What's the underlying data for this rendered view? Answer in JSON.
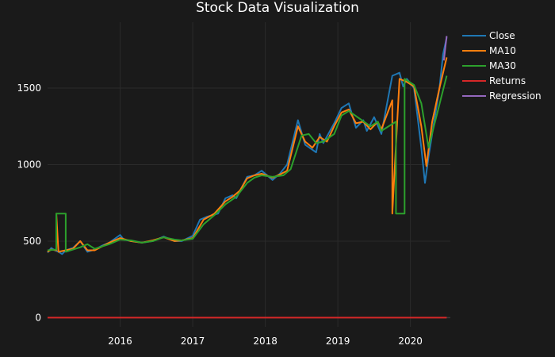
{
  "chart_data": {
    "type": "line",
    "title": "Stock Data Visualization",
    "xlabel": "",
    "ylabel": "",
    "x_ticks": [
      "2016",
      "2017",
      "2018",
      "2019",
      "2020"
    ],
    "y_ticks": [
      0,
      500,
      1000,
      1500
    ],
    "ylim": [
      -60,
      1930
    ],
    "xlim": [
      2015.0,
      2020.55
    ],
    "grid": true,
    "legend_position": "top-right",
    "series": [
      {
        "name": "Close",
        "color": "#1f77b4",
        "x": [
          2015.0,
          2015.05,
          2015.1,
          2015.15,
          2015.2,
          2015.25,
          2015.35,
          2015.45,
          2015.55,
          2015.65,
          2015.75,
          2015.85,
          2016.0,
          2016.05,
          2016.15,
          2016.3,
          2016.45,
          2016.6,
          2016.75,
          2016.85,
          2017.0,
          2017.1,
          2017.2,
          2017.35,
          2017.45,
          2017.55,
          2017.6,
          2017.75,
          2017.85,
          2017.95,
          2018.1,
          2018.2,
          2018.3,
          2018.45,
          2018.55,
          2018.7,
          2018.75,
          2018.8,
          2018.95,
          2019.05,
          2019.15,
          2019.25,
          2019.35,
          2019.4,
          2019.5,
          2019.6,
          2019.75,
          2019.85,
          2019.9,
          2019.95,
          2020.05,
          2020.15,
          2020.2,
          2020.25,
          2020.35,
          2020.4,
          2020.45,
          2020.5
        ],
        "values": [
          425,
          455,
          440,
          430,
          415,
          440,
          455,
          500,
          430,
          445,
          470,
          490,
          540,
          510,
          500,
          490,
          500,
          530,
          500,
          500,
          535,
          640,
          660,
          680,
          780,
          800,
          780,
          920,
          930,
          960,
          900,
          940,
          1000,
          1290,
          1130,
          1080,
          1200,
          1140,
          1270,
          1370,
          1400,
          1240,
          1290,
          1220,
          1310,
          1200,
          1580,
          1600,
          1510,
          1560,
          1500,
          1110,
          880,
          1050,
          1350,
          1500,
          1720,
          1830
        ]
      },
      {
        "name": "MA10",
        "color": "#ff7f0e",
        "x": [
          2015.0,
          2015.05,
          2015.12,
          2015.12,
          2015.15,
          2015.25,
          2015.35,
          2015.45,
          2015.55,
          2015.65,
          2015.75,
          2015.85,
          2016.0,
          2016.15,
          2016.3,
          2016.45,
          2016.6,
          2016.75,
          2016.85,
          2017.0,
          2017.15,
          2017.3,
          2017.45,
          2017.55,
          2017.65,
          2017.75,
          2017.85,
          2017.95,
          2018.1,
          2018.2,
          2018.3,
          2018.45,
          2018.55,
          2018.65,
          2018.75,
          2018.85,
          2018.95,
          2019.05,
          2019.15,
          2019.25,
          2019.35,
          2019.45,
          2019.55,
          2019.6,
          2019.75,
          2019.75,
          2019.85,
          2019.95,
          2020.05,
          2020.15,
          2020.22,
          2020.3,
          2020.4,
          2020.5
        ],
        "values": [
          430,
          445,
          440,
          680,
          430,
          440,
          450,
          500,
          440,
          440,
          465,
          490,
          520,
          500,
          490,
          505,
          525,
          500,
          505,
          520,
          640,
          680,
          760,
          790,
          830,
          910,
          930,
          940,
          915,
          935,
          960,
          1250,
          1150,
          1110,
          1180,
          1150,
          1250,
          1340,
          1360,
          1270,
          1280,
          1230,
          1280,
          1230,
          1420,
          680,
          1560,
          1540,
          1510,
          1250,
          990,
          1280,
          1500,
          1700
        ]
      },
      {
        "name": "MA30",
        "color": "#2ca02c",
        "x": [
          2015.0,
          2015.12,
          2015.12,
          2015.25,
          2015.25,
          2015.45,
          2015.55,
          2015.65,
          2015.75,
          2015.85,
          2016.0,
          2016.15,
          2016.3,
          2016.45,
          2016.6,
          2016.75,
          2016.85,
          2017.0,
          2017.15,
          2017.3,
          2017.45,
          2017.6,
          2017.75,
          2017.85,
          2017.95,
          2018.1,
          2018.25,
          2018.35,
          2018.5,
          2018.6,
          2018.7,
          2018.8,
          2018.95,
          2019.05,
          2019.15,
          2019.3,
          2019.45,
          2019.55,
          2019.6,
          2019.8,
          2019.8,
          2019.92,
          2019.92,
          2020.05,
          2020.15,
          2020.25,
          2020.35,
          2020.5
        ],
        "values": [
          440,
          445,
          680,
          680,
          430,
          460,
          480,
          450,
          465,
          480,
          510,
          505,
          490,
          500,
          525,
          510,
          505,
          515,
          610,
          670,
          740,
          790,
          880,
          915,
          930,
          920,
          930,
          970,
          1190,
          1200,
          1140,
          1150,
          1200,
          1320,
          1350,
          1300,
          1250,
          1280,
          1220,
          1280,
          680,
          680,
          1560,
          1520,
          1400,
          1110,
          1300,
          1580
        ]
      },
      {
        "name": "Returns",
        "color": "#d62728",
        "x": [
          2015.0,
          2020.5
        ],
        "values": [
          0,
          0
        ]
      },
      {
        "name": "Regression",
        "color": "#9467bd",
        "x": [
          2020.46,
          2020.48,
          2020.5
        ],
        "values": [
          1680,
          1760,
          1840
        ]
      }
    ]
  }
}
